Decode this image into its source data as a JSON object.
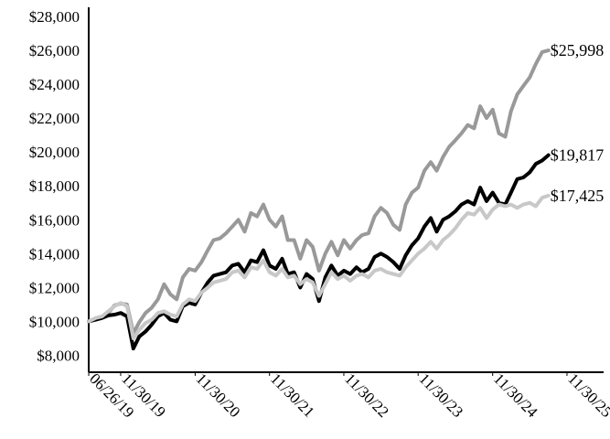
{
  "chart_data": {
    "type": "line",
    "title": "",
    "xlabel": "",
    "ylabel": "",
    "ylim": [
      7000,
      28000
    ],
    "y_ticks": [
      8000,
      10000,
      12000,
      14000,
      16000,
      18000,
      20000,
      22000,
      24000,
      26000,
      28000
    ],
    "y_tick_labels": [
      "$8,000",
      "$10,000",
      "$12,000",
      "$14,000",
      "$16,000",
      "$18,000",
      "$20,000",
      "$22,000",
      "$24,000",
      "$26,000",
      "$28,000"
    ],
    "x_range": [
      "2019-06-26",
      "2026-02-28"
    ],
    "x_ticks": [
      "2019-06-26",
      "2019-11-30",
      "2020-11-30",
      "2021-11-30",
      "2022-11-30",
      "2023-11-30",
      "2024-11-30",
      "2025-11-30"
    ],
    "x_tick_labels": [
      "06/26/19",
      "11/30/19",
      "11/30/20",
      "11/30/21",
      "11/30/22",
      "11/30/23",
      "11/30/24",
      "11/30/25"
    ],
    "grid": false,
    "legend": "none",
    "series": [
      {
        "color": "#999999",
        "end_label": "$25,998",
        "points": [
          [
            "2019-06-26",
            10000
          ],
          [
            "2019-07-31",
            10150
          ],
          [
            "2019-08-31",
            10300
          ],
          [
            "2019-09-30",
            10500
          ],
          [
            "2019-10-31",
            10950
          ],
          [
            "2019-11-30",
            11050
          ],
          [
            "2019-12-31",
            11000
          ],
          [
            "2020-01-31",
            9300
          ],
          [
            "2020-02-29",
            9950
          ],
          [
            "2020-03-31",
            10500
          ],
          [
            "2020-04-30",
            10800
          ],
          [
            "2020-05-31",
            11300
          ],
          [
            "2020-06-30",
            12200
          ],
          [
            "2020-07-31",
            11600
          ],
          [
            "2020-08-31",
            11300
          ],
          [
            "2020-09-30",
            12600
          ],
          [
            "2020-10-31",
            13100
          ],
          [
            "2020-11-30",
            13000
          ],
          [
            "2020-12-31",
            13500
          ],
          [
            "2021-01-31",
            14200
          ],
          [
            "2021-02-28",
            14800
          ],
          [
            "2021-03-31",
            14900
          ],
          [
            "2021-04-30",
            15200
          ],
          [
            "2021-05-31",
            15600
          ],
          [
            "2021-06-30",
            16000
          ],
          [
            "2021-07-31",
            15300
          ],
          [
            "2021-08-31",
            16400
          ],
          [
            "2021-09-30",
            16200
          ],
          [
            "2021-10-31",
            16900
          ],
          [
            "2021-11-30",
            16000
          ],
          [
            "2021-12-31",
            15600
          ],
          [
            "2022-01-31",
            16200
          ],
          [
            "2022-02-28",
            14800
          ],
          [
            "2022-03-31",
            14800
          ],
          [
            "2022-04-30",
            13700
          ],
          [
            "2022-05-31",
            14800
          ],
          [
            "2022-06-30",
            14400
          ],
          [
            "2022-07-31",
            13000
          ],
          [
            "2022-08-31",
            14000
          ],
          [
            "2022-09-30",
            14700
          ],
          [
            "2022-10-31",
            13900
          ],
          [
            "2022-11-30",
            14800
          ],
          [
            "2022-12-31",
            14300
          ],
          [
            "2023-01-31",
            14800
          ],
          [
            "2023-02-28",
            15100
          ],
          [
            "2023-03-31",
            15200
          ],
          [
            "2023-04-30",
            16200
          ],
          [
            "2023-05-31",
            16700
          ],
          [
            "2023-06-30",
            16400
          ],
          [
            "2023-07-31",
            15700
          ],
          [
            "2023-08-31",
            15400
          ],
          [
            "2023-09-30",
            16900
          ],
          [
            "2023-10-31",
            17600
          ],
          [
            "2023-11-30",
            17900
          ],
          [
            "2023-12-31",
            18900
          ],
          [
            "2024-01-31",
            19400
          ],
          [
            "2024-02-29",
            18900
          ],
          [
            "2024-03-31",
            19700
          ],
          [
            "2024-04-30",
            20300
          ],
          [
            "2024-05-31",
            20700
          ],
          [
            "2024-06-30",
            21100
          ],
          [
            "2024-07-31",
            21600
          ],
          [
            "2024-08-31",
            21400
          ],
          [
            "2024-09-30",
            22700
          ],
          [
            "2024-10-31",
            22000
          ],
          [
            "2024-11-30",
            22500
          ],
          [
            "2024-12-31",
            21100
          ],
          [
            "2025-01-31",
            20900
          ],
          [
            "2025-02-28",
            22400
          ],
          [
            "2025-03-31",
            23400
          ],
          [
            "2025-04-30",
            23900
          ],
          [
            "2025-05-31",
            24400
          ],
          [
            "2025-06-30",
            25200
          ],
          [
            "2025-07-31",
            25900
          ],
          [
            "2025-08-31",
            25998
          ]
        ]
      },
      {
        "color": "#000000",
        "end_label": "$19,817",
        "points": [
          [
            "2019-06-26",
            10000
          ],
          [
            "2019-07-31",
            10100
          ],
          [
            "2019-08-31",
            10200
          ],
          [
            "2019-09-30",
            10350
          ],
          [
            "2019-10-31",
            10400
          ],
          [
            "2019-11-30",
            10500
          ],
          [
            "2019-12-31",
            10300
          ],
          [
            "2020-01-31",
            8400
          ],
          [
            "2020-02-29",
            9100
          ],
          [
            "2020-03-31",
            9400
          ],
          [
            "2020-04-30",
            9800
          ],
          [
            "2020-05-31",
            10300
          ],
          [
            "2020-06-30",
            10500
          ],
          [
            "2020-07-31",
            10100
          ],
          [
            "2020-08-31",
            10000
          ],
          [
            "2020-09-30",
            10900
          ],
          [
            "2020-10-31",
            11100
          ],
          [
            "2020-11-30",
            11000
          ],
          [
            "2020-12-31",
            11700
          ],
          [
            "2021-01-31",
            12300
          ],
          [
            "2021-02-28",
            12700
          ],
          [
            "2021-03-31",
            12800
          ],
          [
            "2021-04-30",
            12900
          ],
          [
            "2021-05-31",
            13300
          ],
          [
            "2021-06-30",
            13400
          ],
          [
            "2021-07-31",
            12900
          ],
          [
            "2021-08-31",
            13600
          ],
          [
            "2021-09-30",
            13500
          ],
          [
            "2021-10-31",
            14200
          ],
          [
            "2021-11-30",
            13300
          ],
          [
            "2021-12-31",
            13100
          ],
          [
            "2022-01-31",
            13700
          ],
          [
            "2022-02-28",
            12800
          ],
          [
            "2022-03-31",
            12900
          ],
          [
            "2022-04-30",
            12000
          ],
          [
            "2022-05-31",
            12800
          ],
          [
            "2022-06-30",
            12500
          ],
          [
            "2022-07-31",
            11200
          ],
          [
            "2022-08-31",
            12600
          ],
          [
            "2022-09-30",
            13300
          ],
          [
            "2022-10-31",
            12700
          ],
          [
            "2022-11-30",
            13000
          ],
          [
            "2022-12-31",
            12800
          ],
          [
            "2023-01-31",
            13200
          ],
          [
            "2023-02-28",
            12900
          ],
          [
            "2023-03-31",
            13100
          ],
          [
            "2023-04-30",
            13800
          ],
          [
            "2023-05-31",
            14000
          ],
          [
            "2023-06-30",
            13800
          ],
          [
            "2023-07-31",
            13500
          ],
          [
            "2023-08-31",
            13100
          ],
          [
            "2023-09-30",
            13900
          ],
          [
            "2023-10-31",
            14500
          ],
          [
            "2023-11-30",
            14900
          ],
          [
            "2023-12-31",
            15600
          ],
          [
            "2024-01-31",
            16100
          ],
          [
            "2024-02-29",
            15300
          ],
          [
            "2024-03-31",
            16000
          ],
          [
            "2024-04-30",
            16200
          ],
          [
            "2024-05-31",
            16500
          ],
          [
            "2024-06-30",
            16900
          ],
          [
            "2024-07-31",
            17100
          ],
          [
            "2024-08-31",
            16900
          ],
          [
            "2024-09-30",
            17900
          ],
          [
            "2024-10-31",
            17100
          ],
          [
            "2024-11-30",
            17600
          ],
          [
            "2024-12-31",
            17000
          ],
          [
            "2025-01-31",
            16900
          ],
          [
            "2025-02-28",
            17600
          ],
          [
            "2025-03-31",
            18400
          ],
          [
            "2025-04-30",
            18500
          ],
          [
            "2025-05-31",
            18800
          ],
          [
            "2025-06-30",
            19300
          ],
          [
            "2025-07-31",
            19500
          ],
          [
            "2025-08-31",
            19817
          ]
        ]
      },
      {
        "color": "#c8c8c8",
        "end_label": "$17,425",
        "points": [
          [
            "2019-06-26",
            10000
          ],
          [
            "2019-07-31",
            10200
          ],
          [
            "2019-08-31",
            10300
          ],
          [
            "2019-09-30",
            10600
          ],
          [
            "2019-10-31",
            10900
          ],
          [
            "2019-11-30",
            11100
          ],
          [
            "2019-12-31",
            10900
          ],
          [
            "2020-01-31",
            9000
          ],
          [
            "2020-02-29",
            9500
          ],
          [
            "2020-03-31",
            9900
          ],
          [
            "2020-04-30",
            10100
          ],
          [
            "2020-05-31",
            10500
          ],
          [
            "2020-06-30",
            10600
          ],
          [
            "2020-07-31",
            10400
          ],
          [
            "2020-08-31",
            10300
          ],
          [
            "2020-09-30",
            11000
          ],
          [
            "2020-10-31",
            11300
          ],
          [
            "2020-11-30",
            11200
          ],
          [
            "2020-12-31",
            11700
          ],
          [
            "2021-01-31",
            12000
          ],
          [
            "2021-02-28",
            12300
          ],
          [
            "2021-03-31",
            12400
          ],
          [
            "2021-04-30",
            12500
          ],
          [
            "2021-05-31",
            12900
          ],
          [
            "2021-06-30",
            13000
          ],
          [
            "2021-07-31",
            12600
          ],
          [
            "2021-08-31",
            13200
          ],
          [
            "2021-09-30",
            13100
          ],
          [
            "2021-10-31",
            13600
          ],
          [
            "2021-11-30",
            12900
          ],
          [
            "2021-12-31",
            12700
          ],
          [
            "2022-01-31",
            13100
          ],
          [
            "2022-02-28",
            12600
          ],
          [
            "2022-03-31",
            12700
          ],
          [
            "2022-04-30",
            12200
          ],
          [
            "2022-05-31",
            12500
          ],
          [
            "2022-06-30",
            12300
          ],
          [
            "2022-07-31",
            11500
          ],
          [
            "2022-08-31",
            12200
          ],
          [
            "2022-09-30",
            12900
          ],
          [
            "2022-10-31",
            12500
          ],
          [
            "2022-11-30",
            12700
          ],
          [
            "2022-12-31",
            12400
          ],
          [
            "2023-01-31",
            12700
          ],
          [
            "2023-02-28",
            12800
          ],
          [
            "2023-03-31",
            12600
          ],
          [
            "2023-04-30",
            13000
          ],
          [
            "2023-05-31",
            13100
          ],
          [
            "2023-06-30",
            12900
          ],
          [
            "2023-07-31",
            12800
          ],
          [
            "2023-08-31",
            12700
          ],
          [
            "2023-09-30",
            13200
          ],
          [
            "2023-10-31",
            13600
          ],
          [
            "2023-11-30",
            14000
          ],
          [
            "2023-12-31",
            14300
          ],
          [
            "2024-01-31",
            14700
          ],
          [
            "2024-02-29",
            14300
          ],
          [
            "2024-03-31",
            14800
          ],
          [
            "2024-04-30",
            15100
          ],
          [
            "2024-05-31",
            15500
          ],
          [
            "2024-06-30",
            16000
          ],
          [
            "2024-07-31",
            16400
          ],
          [
            "2024-08-31",
            16300
          ],
          [
            "2024-09-30",
            16700
          ],
          [
            "2024-10-31",
            16100
          ],
          [
            "2024-11-30",
            16600
          ],
          [
            "2024-12-31",
            16900
          ],
          [
            "2025-01-31",
            16800
          ],
          [
            "2025-02-28",
            16900
          ],
          [
            "2025-03-31",
            16700
          ],
          [
            "2025-04-30",
            16900
          ],
          [
            "2025-05-31",
            17000
          ],
          [
            "2025-06-30",
            16800
          ],
          [
            "2025-07-31",
            17300
          ],
          [
            "2025-08-31",
            17425
          ]
        ]
      }
    ]
  }
}
